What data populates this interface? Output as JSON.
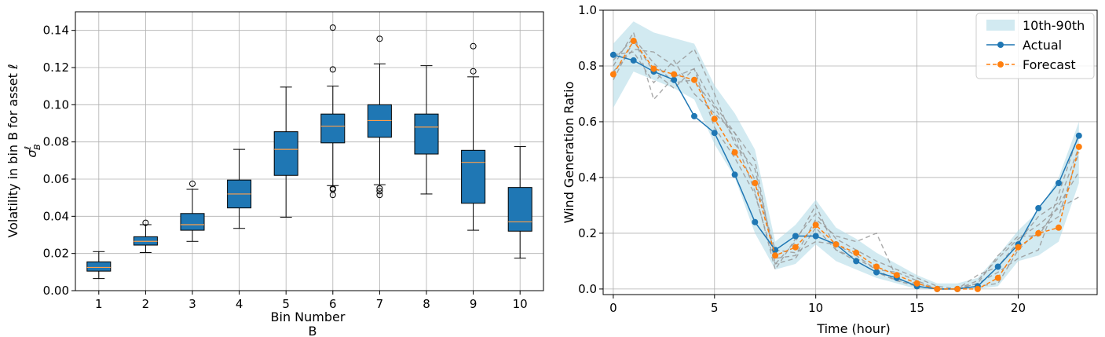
{
  "chart_data": [
    {
      "type": "box",
      "xlabel_line1": "Bin Number",
      "xlabel_line2": "B",
      "ylabel": "Volatility in bin B for asset ℓ",
      "ylabel_symbol": "σ",
      "ylabel_sup": "ℓ",
      "ylabel_sub": "B",
      "ylim": [
        0,
        0.15
      ],
      "yticks": [
        0.0,
        0.02,
        0.04,
        0.06,
        0.08,
        0.1,
        0.12,
        0.14
      ],
      "ytick_labels": [
        "0.00",
        "0.02",
        "0.04",
        "0.06",
        "0.08",
        "0.10",
        "0.12",
        "0.14"
      ],
      "categories": [
        "1",
        "2",
        "3",
        "4",
        "5",
        "6",
        "7",
        "8",
        "9",
        "10"
      ],
      "box_color": "#1f77b4",
      "median_color": "#ff9f4a",
      "boxes": [
        {
          "whislo": 0.0065,
          "q1": 0.0105,
          "med": 0.0125,
          "q3": 0.0155,
          "whishi": 0.021,
          "fliers": []
        },
        {
          "whislo": 0.0205,
          "q1": 0.0245,
          "med": 0.0265,
          "q3": 0.029,
          "whishi": 0.0355,
          "fliers": [
            0.0365
          ]
        },
        {
          "whislo": 0.0265,
          "q1": 0.0325,
          "med": 0.0355,
          "q3": 0.0415,
          "whishi": 0.0545,
          "fliers": [
            0.0575
          ]
        },
        {
          "whislo": 0.0335,
          "q1": 0.0445,
          "med": 0.052,
          "q3": 0.0595,
          "whishi": 0.076,
          "fliers": []
        },
        {
          "whislo": 0.0395,
          "q1": 0.062,
          "med": 0.076,
          "q3": 0.0855,
          "whishi": 0.1095,
          "fliers": []
        },
        {
          "whislo": 0.0565,
          "q1": 0.0795,
          "med": 0.0885,
          "q3": 0.095,
          "whishi": 0.11,
          "fliers": [
            0.055,
            0.0545,
            0.0515,
            0.119,
            0.1415
          ]
        },
        {
          "whislo": 0.057,
          "q1": 0.0825,
          "med": 0.0915,
          "q3": 0.1,
          "whishi": 0.122,
          "fliers": [
            0.055,
            0.0535,
            0.0515,
            0.1355
          ]
        },
        {
          "whislo": 0.052,
          "q1": 0.0735,
          "med": 0.088,
          "q3": 0.095,
          "whishi": 0.121,
          "fliers": []
        },
        {
          "whislo": 0.0325,
          "q1": 0.047,
          "med": 0.069,
          "q3": 0.0755,
          "whishi": 0.115,
          "fliers": [
            0.118,
            0.1315
          ]
        },
        {
          "whislo": 0.0175,
          "q1": 0.032,
          "med": 0.037,
          "q3": 0.0555,
          "whishi": 0.0775,
          "fliers": []
        }
      ]
    },
    {
      "type": "line",
      "xlabel": "Time (hour)",
      "ylabel": "Wind Generation Ratio",
      "xlim": [
        -0.5,
        23.9
      ],
      "ylim": [
        -0.02,
        1.0
      ],
      "xticks": [
        0,
        5,
        10,
        15,
        20
      ],
      "yticks": [
        0.0,
        0.2,
        0.4,
        0.6,
        0.8,
        1.0
      ],
      "ytick_labels": [
        "0.0",
        "0.2",
        "0.4",
        "0.6",
        "0.8",
        "1.0"
      ],
      "x": [
        0,
        1,
        2,
        3,
        4,
        5,
        6,
        7,
        8,
        9,
        10,
        11,
        12,
        13,
        14,
        15,
        16,
        17,
        18,
        19,
        20,
        21,
        22,
        23
      ],
      "band": {
        "name": "10th-90th",
        "color": "#add8e6",
        "lower": [
          0.65,
          0.78,
          0.75,
          0.72,
          0.68,
          0.52,
          0.4,
          0.2,
          0.07,
          0.09,
          0.16,
          0.1,
          0.07,
          0.04,
          0.02,
          0.0,
          0.0,
          0.0,
          0.0,
          0.01,
          0.1,
          0.12,
          0.17,
          0.38
        ],
        "upper": [
          0.88,
          0.96,
          0.92,
          0.9,
          0.88,
          0.73,
          0.63,
          0.5,
          0.17,
          0.23,
          0.32,
          0.22,
          0.18,
          0.13,
          0.09,
          0.05,
          0.02,
          0.02,
          0.04,
          0.12,
          0.21,
          0.28,
          0.4,
          0.6
        ]
      },
      "series": [
        {
          "name": "Actual",
          "color": "#1f77b4",
          "style": "solid",
          "values": [
            0.84,
            0.82,
            0.78,
            0.75,
            0.62,
            0.56,
            0.41,
            0.24,
            0.14,
            0.19,
            0.19,
            0.16,
            0.1,
            0.06,
            0.04,
            0.01,
            0.0,
            0.0,
            0.01,
            0.08,
            0.16,
            0.29,
            0.38,
            0.55
          ]
        },
        {
          "name": "Forecast",
          "color": "#ff7f0e",
          "style": "dashed",
          "values": [
            0.77,
            0.89,
            0.79,
            0.77,
            0.75,
            0.61,
            0.49,
            0.38,
            0.12,
            0.15,
            0.23,
            0.16,
            0.13,
            0.08,
            0.05,
            0.02,
            0.0,
            0.0,
            0.0,
            0.04,
            0.15,
            0.2,
            0.22,
            0.51
          ]
        }
      ],
      "scenarios": {
        "color": "#999999",
        "lines": [
          [
            0.8,
            0.92,
            0.68,
            0.76,
            0.79,
            0.66,
            0.56,
            0.46,
            0.09,
            0.17,
            0.3,
            0.14,
            0.11,
            0.07,
            0.03,
            0.02,
            0.0,
            0.0,
            0.02,
            0.06,
            0.11,
            0.14,
            0.34,
            0.56
          ],
          [
            0.78,
            0.86,
            0.85,
            0.8,
            0.86,
            0.7,
            0.52,
            0.43,
            0.11,
            0.12,
            0.25,
            0.19,
            0.17,
            0.2,
            0.04,
            0.01,
            0.0,
            0.0,
            0.01,
            0.02,
            0.14,
            0.21,
            0.26,
            0.49
          ],
          [
            0.82,
            0.9,
            0.81,
            0.74,
            0.75,
            0.65,
            0.54,
            0.35,
            0.07,
            0.18,
            0.27,
            0.18,
            0.14,
            0.1,
            0.07,
            0.04,
            0.01,
            0.0,
            0.05,
            0.08,
            0.17,
            0.26,
            0.31,
            0.51
          ],
          [
            0.75,
            0.89,
            0.78,
            0.72,
            0.79,
            0.58,
            0.47,
            0.34,
            0.09,
            0.11,
            0.22,
            0.14,
            0.1,
            0.06,
            0.03,
            0.01,
            0.0,
            0.0,
            0.03,
            0.11,
            0.18,
            0.23,
            0.29,
            0.33
          ],
          [
            0.84,
            0.85,
            0.74,
            0.82,
            0.7,
            0.63,
            0.56,
            0.39,
            0.14,
            0.13,
            0.17,
            0.16,
            0.12,
            0.07,
            0.06,
            0.03,
            0.0,
            0.0,
            0.02,
            0.12,
            0.19,
            0.19,
            0.3,
            0.42
          ]
        ]
      },
      "legend": {
        "position": "top-right",
        "entries": [
          "10th-90th",
          "Actual",
          "Forecast"
        ]
      }
    }
  ]
}
